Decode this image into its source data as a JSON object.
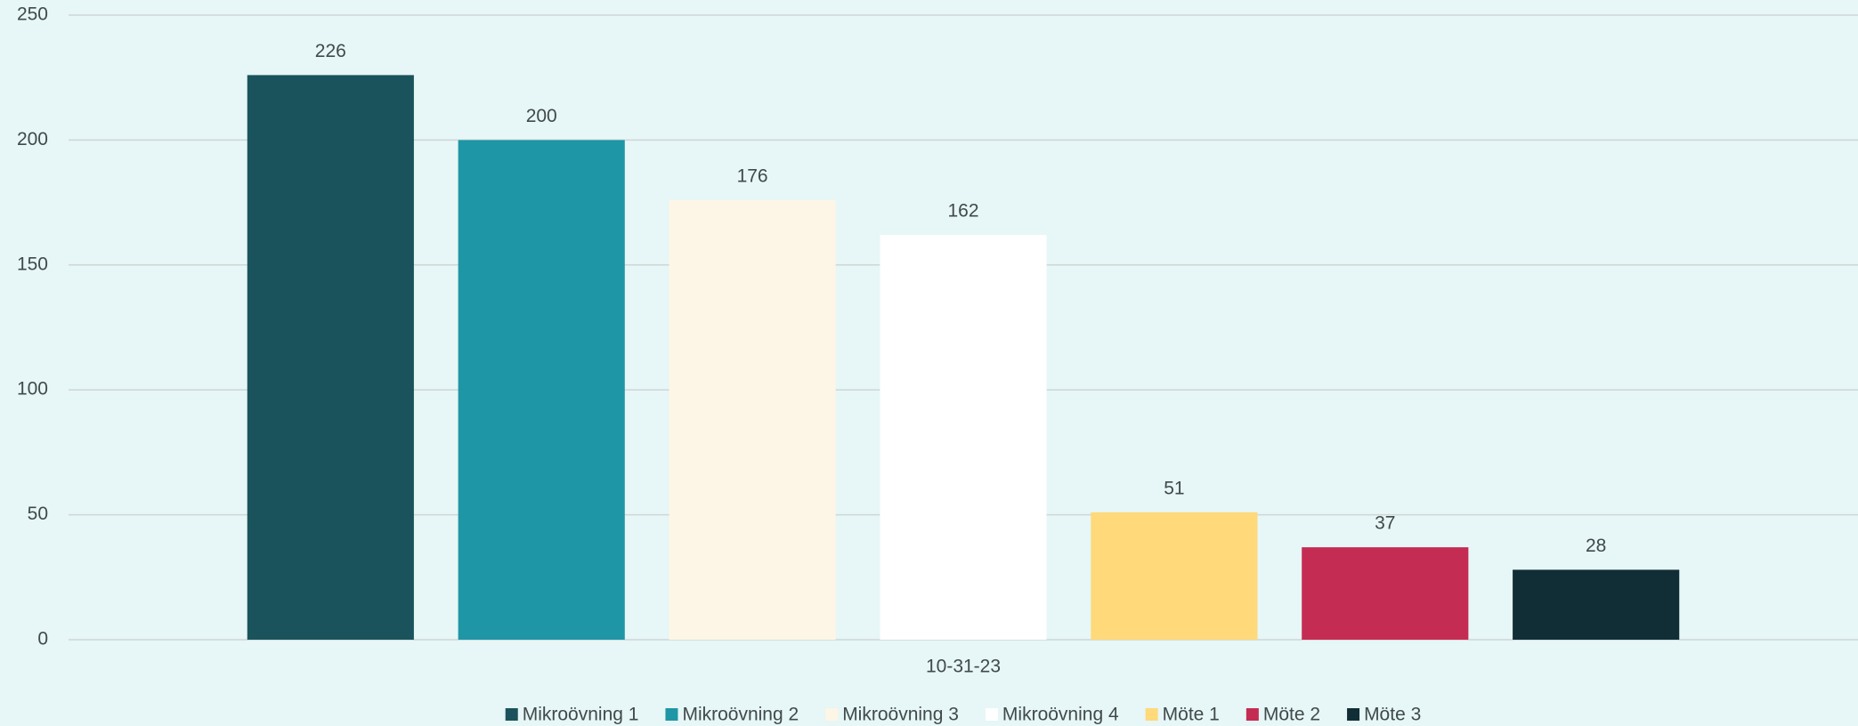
{
  "chart_data": {
    "type": "bar",
    "categories": [
      "10-31-23"
    ],
    "series": [
      {
        "name": "Mikroövning 1",
        "color": "#1b535c",
        "values": [
          226
        ]
      },
      {
        "name": "Mikroövning 2",
        "color": "#1f96a6",
        "values": [
          200
        ]
      },
      {
        "name": "Mikroövning 3",
        "color": "#fdf6e6",
        "values": [
          176
        ]
      },
      {
        "name": "Mikroövning 4",
        "color": "#ffffff",
        "values": [
          162
        ]
      },
      {
        "name": "Möte 1",
        "color": "#ffd97a",
        "values": [
          51
        ]
      },
      {
        "name": "Möte 2",
        "color": "#c52c53",
        "values": [
          37
        ]
      },
      {
        "name": "Möte 3",
        "color": "#112e36",
        "values": [
          28
        ]
      }
    ],
    "ylim": [
      0,
      250
    ],
    "yticks": [
      0,
      50,
      100,
      150,
      200,
      250
    ],
    "grid": true,
    "legend": "bottom"
  }
}
